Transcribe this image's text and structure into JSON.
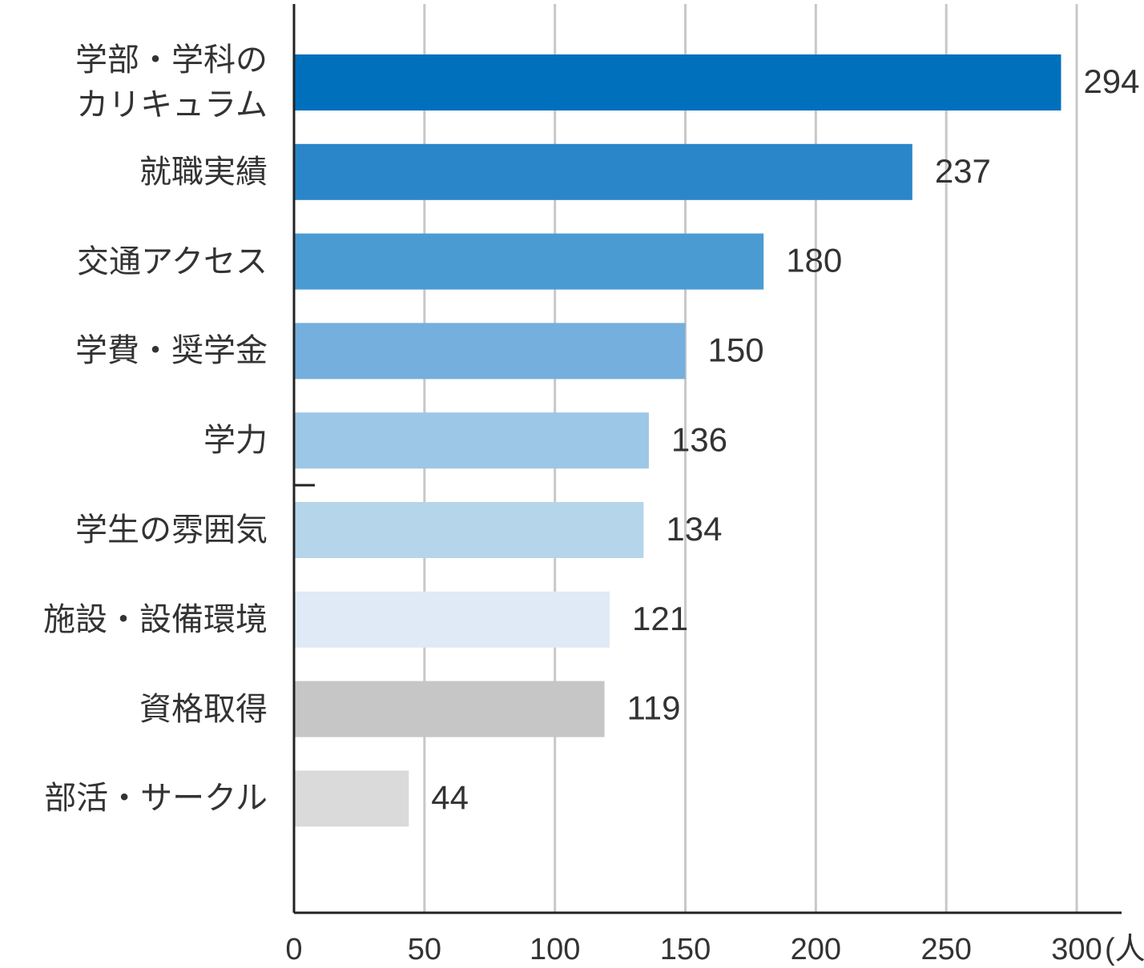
{
  "chart_data": {
    "type": "bar",
    "orientation": "horizontal",
    "categories": [
      "学部・学科の\nカリキュラム",
      "就職実績",
      "交通アクセス",
      "学費・奨学金",
      "学力",
      "学生の雰囲気",
      "施設・設備環境",
      "資格取得",
      "部活・サークル"
    ],
    "values": [
      294,
      237,
      180,
      150,
      136,
      134,
      121,
      119,
      44
    ],
    "colors": [
      "#0070bc",
      "#2a86c8",
      "#4b9bd3",
      "#74afdd",
      "#9dc7e6",
      "#b4d5ea",
      "#dfeaf6",
      "#c6c6c6",
      "#dadada"
    ],
    "xlim": [
      0,
      300
    ],
    "xticks": [
      0,
      50,
      100,
      150,
      200,
      250,
      300
    ],
    "x_unit": "(人)",
    "grid": true
  }
}
